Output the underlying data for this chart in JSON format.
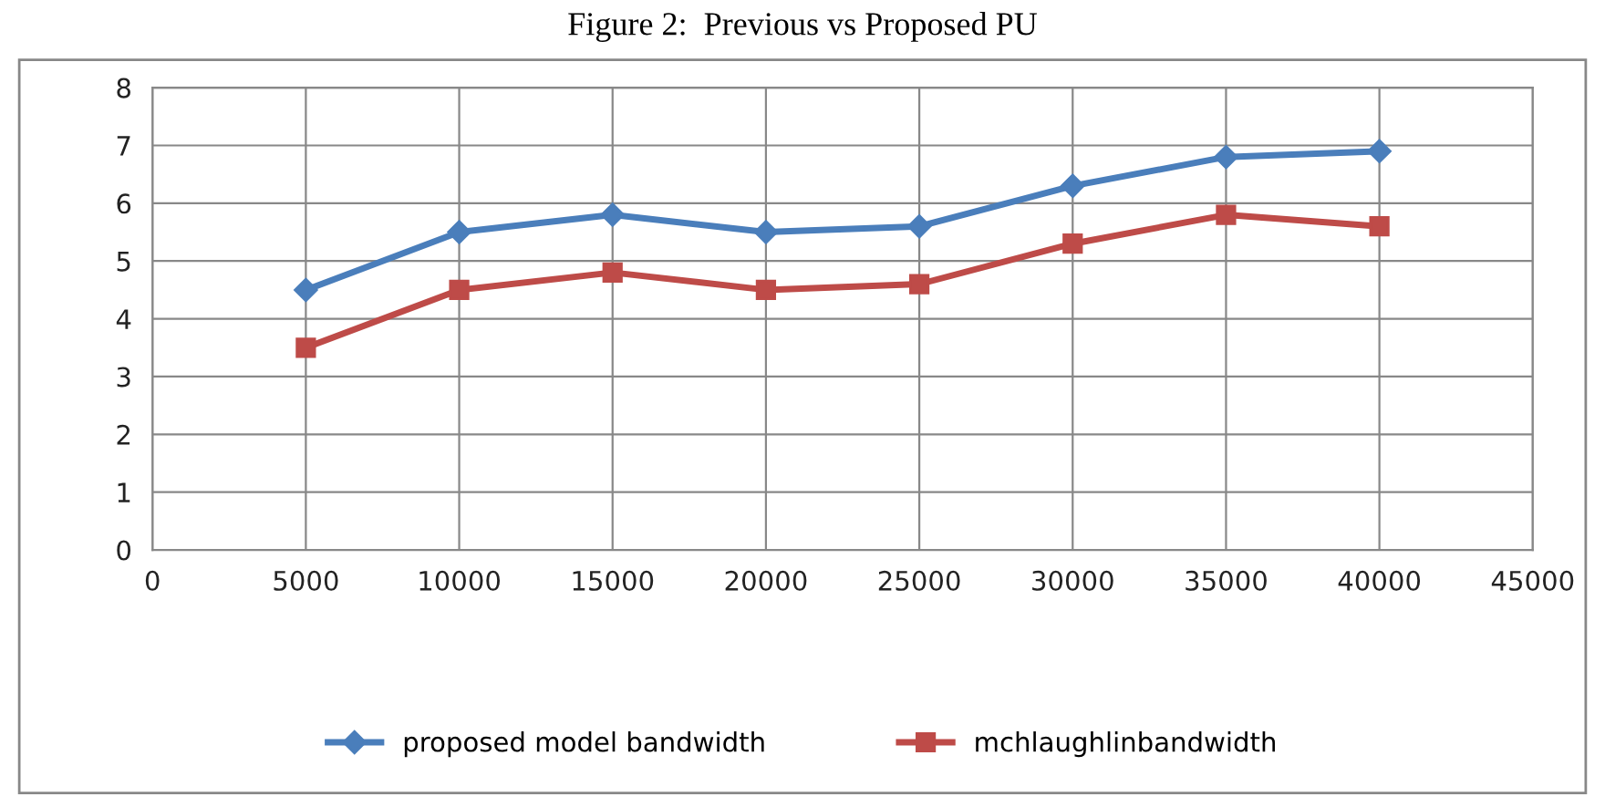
{
  "chart_data": {
    "type": "line",
    "title": "Figure 2:  Previous vs Proposed PU",
    "x": [
      5000,
      10000,
      15000,
      20000,
      25000,
      30000,
      35000,
      40000
    ],
    "series": [
      {
        "name": "proposed model bandwidth",
        "color": "#4a7ebb",
        "marker": "diamond",
        "values": [
          4.5,
          5.5,
          5.8,
          5.5,
          5.6,
          6.3,
          6.8,
          6.9
        ]
      },
      {
        "name": "mchlaughlinbandwidth",
        "color": "#be4b48",
        "marker": "square",
        "values": [
          3.5,
          4.5,
          4.8,
          4.5,
          4.6,
          5.3,
          5.8,
          5.6
        ]
      }
    ],
    "xlim": [
      0,
      45000
    ],
    "xticks": [
      0,
      5000,
      10000,
      15000,
      20000,
      25000,
      30000,
      35000,
      40000,
      45000
    ],
    "ylim": [
      0,
      8
    ],
    "yticks": [
      0,
      1,
      2,
      3,
      4,
      5,
      6,
      7,
      8
    ],
    "grid": true,
    "legend": "bottom",
    "line_style": "solid"
  }
}
